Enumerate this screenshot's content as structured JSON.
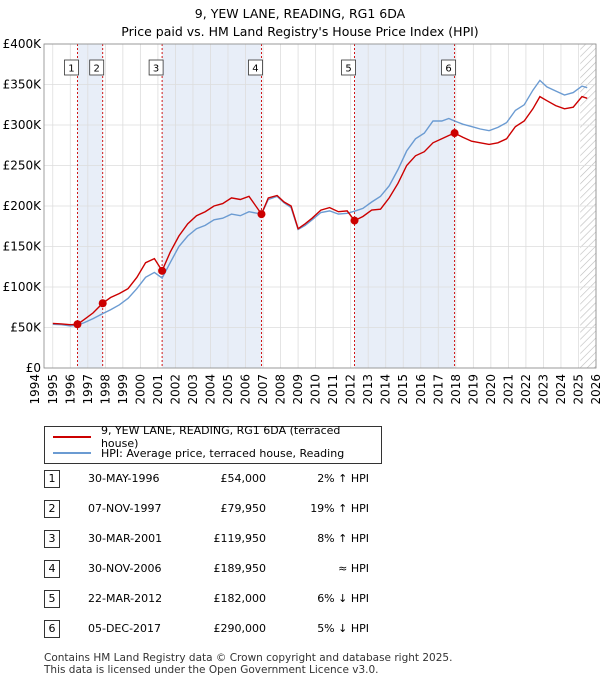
{
  "header": {
    "title": "9, YEW LANE, READING, RG1 6DA",
    "subtitle": "Price paid vs. HM Land Registry's House Price Index (HPI)"
  },
  "colors": {
    "price": "#cc0000",
    "hpi": "#6b9bd2",
    "shade": "#e8eef8",
    "marker_line": "#cc0000",
    "grid": "#dddddd"
  },
  "chart_data": {
    "type": "line",
    "title": "9, YEW LANE, READING, RG1 6DA",
    "xlim": [
      1994.5,
      2026.0
    ],
    "ylim": [
      0,
      400000
    ],
    "x_ticks": [
      1994,
      1995,
      1996,
      1997,
      1998,
      1999,
      2000,
      2001,
      2002,
      2003,
      2004,
      2005,
      2006,
      2007,
      2008,
      2009,
      2010,
      2011,
      2012,
      2013,
      2014,
      2015,
      2016,
      2017,
      2018,
      2019,
      2020,
      2021,
      2022,
      2023,
      2024,
      2025,
      2026
    ],
    "y_ticks": [
      {
        "value": 0,
        "label": "£0"
      },
      {
        "value": 50000,
        "label": "£50K"
      },
      {
        "value": 100000,
        "label": "£100K"
      },
      {
        "value": 150000,
        "label": "£150K"
      },
      {
        "value": 200000,
        "label": "£200K"
      },
      {
        "value": 250000,
        "label": "£250K"
      },
      {
        "value": 300000,
        "label": "£300K"
      },
      {
        "value": 350000,
        "label": "£350K"
      },
      {
        "value": 400000,
        "label": "£400K"
      }
    ],
    "series": [
      {
        "name": "9, YEW LANE, READING, RG1 6DA (terraced house)",
        "color": "#cc0000",
        "x": [
          1995.0,
          1995.5,
          1996.0,
          1996.41,
          1996.8,
          1997.3,
          1997.85,
          1998.3,
          1998.8,
          1999.3,
          1999.8,
          2000.3,
          2000.8,
          2001.24,
          2001.7,
          2002.2,
          2002.7,
          2003.2,
          2003.7,
          2004.2,
          2004.7,
          2005.2,
          2005.7,
          2006.2,
          2006.91,
          2007.3,
          2007.8,
          2008.2,
          2008.6,
          2009.0,
          2009.4,
          2009.8,
          2010.3,
          2010.8,
          2011.3,
          2011.8,
          2012.22,
          2012.7,
          2013.2,
          2013.7,
          2014.2,
          2014.7,
          2015.2,
          2015.7,
          2016.2,
          2016.7,
          2017.2,
          2017.6,
          2017.93,
          2018.4,
          2018.9,
          2019.4,
          2019.9,
          2020.4,
          2020.9,
          2021.4,
          2021.9,
          2022.4,
          2022.8,
          2023.2,
          2023.7,
          2024.2,
          2024.7,
          2025.2,
          2025.5
        ],
        "values": [
          55000,
          54500,
          53500,
          54000,
          60000,
          68000,
          79950,
          87000,
          92000,
          98000,
          112000,
          130000,
          135000,
          119950,
          143000,
          163000,
          178000,
          188000,
          193000,
          200000,
          203000,
          210000,
          208000,
          212000,
          189950,
          210000,
          213000,
          205000,
          200000,
          172000,
          178000,
          185000,
          195000,
          198000,
          193000,
          194000,
          182000,
          187000,
          195000,
          196000,
          210000,
          228000,
          250000,
          262000,
          267000,
          278000,
          283000,
          287000,
          290000,
          285000,
          280000,
          278000,
          276000,
          278000,
          283000,
          298000,
          305000,
          320000,
          335000,
          330000,
          324000,
          320000,
          322000,
          335000,
          333000
        ]
      },
      {
        "name": "HPI: Average price, terraced house, Reading",
        "color": "#6b9bd2",
        "x": [
          1995.0,
          1995.5,
          1996.0,
          1996.41,
          1996.8,
          1997.3,
          1997.85,
          1998.3,
          1998.8,
          1999.3,
          1999.8,
          2000.3,
          2000.8,
          2001.24,
          2001.7,
          2002.2,
          2002.7,
          2003.2,
          2003.7,
          2004.2,
          2004.7,
          2005.2,
          2005.7,
          2006.2,
          2006.91,
          2007.3,
          2007.8,
          2008.2,
          2008.6,
          2009.0,
          2009.4,
          2009.8,
          2010.3,
          2010.8,
          2011.3,
          2011.8,
          2012.22,
          2012.7,
          2013.2,
          2013.7,
          2014.2,
          2014.7,
          2015.2,
          2015.7,
          2016.2,
          2016.7,
          2017.2,
          2017.6,
          2017.93,
          2018.4,
          2018.9,
          2019.4,
          2019.9,
          2020.4,
          2020.9,
          2021.4,
          2021.9,
          2022.4,
          2022.8,
          2023.2,
          2023.7,
          2024.2,
          2024.7,
          2025.2,
          2025.5
        ],
        "values": [
          54000,
          53500,
          52000,
          52900,
          56000,
          61000,
          67200,
          72000,
          78000,
          86000,
          98000,
          112000,
          118000,
          111000,
          130000,
          150000,
          163000,
          172000,
          176000,
          183000,
          185000,
          190000,
          188000,
          193000,
          190000,
          208000,
          212000,
          204000,
          198000,
          171000,
          176000,
          183000,
          192000,
          194000,
          190000,
          191000,
          193600,
          197000,
          205000,
          212000,
          225000,
          245000,
          268000,
          283000,
          290000,
          305000,
          305000,
          308000,
          305000,
          301000,
          298000,
          295000,
          293000,
          297000,
          303000,
          318000,
          325000,
          343000,
          355000,
          347000,
          342000,
          337000,
          340000,
          348000,
          346000
        ]
      }
    ],
    "transactions": [
      {
        "id": "1",
        "x": 1996.41,
        "value": 54000
      },
      {
        "id": "2",
        "x": 1997.85,
        "value": 79950
      },
      {
        "id": "3",
        "x": 2001.24,
        "value": 119950
      },
      {
        "id": "4",
        "x": 2006.91,
        "value": 189950
      },
      {
        "id": "5",
        "x": 2012.22,
        "value": 182000
      },
      {
        "id": "6",
        "x": 2017.93,
        "value": 290000
      }
    ],
    "shaded_periods": [
      [
        1996.41,
        1997.85
      ],
      [
        2001.24,
        2006.91
      ],
      [
        2012.22,
        2017.93
      ]
    ],
    "hatched_period": [
      2025.1,
      2026.0
    ]
  },
  "legend": {
    "price_label": "9, YEW LANE, READING, RG1 6DA (terraced house)",
    "hpi_label": "HPI: Average price, terraced house, Reading"
  },
  "transactions_table": [
    {
      "num": "1",
      "date": "30-MAY-1996",
      "price": "£54,000",
      "hpi": "2% ↑ HPI"
    },
    {
      "num": "2",
      "date": "07-NOV-1997",
      "price": "£79,950",
      "hpi": "19% ↑ HPI"
    },
    {
      "num": "3",
      "date": "30-MAR-2001",
      "price": "£119,950",
      "hpi": "8% ↑ HPI"
    },
    {
      "num": "4",
      "date": "30-NOV-2006",
      "price": "£189,950",
      "hpi": "≈ HPI"
    },
    {
      "num": "5",
      "date": "22-MAR-2012",
      "price": "£182,000",
      "hpi": "6% ↓ HPI"
    },
    {
      "num": "6",
      "date": "05-DEC-2017",
      "price": "£290,000",
      "hpi": "5% ↓ HPI"
    }
  ],
  "footer": {
    "line1": "Contains HM Land Registry data © Crown copyright and database right 2025.",
    "line2": "This data is licensed under the Open Government Licence v3.0."
  }
}
